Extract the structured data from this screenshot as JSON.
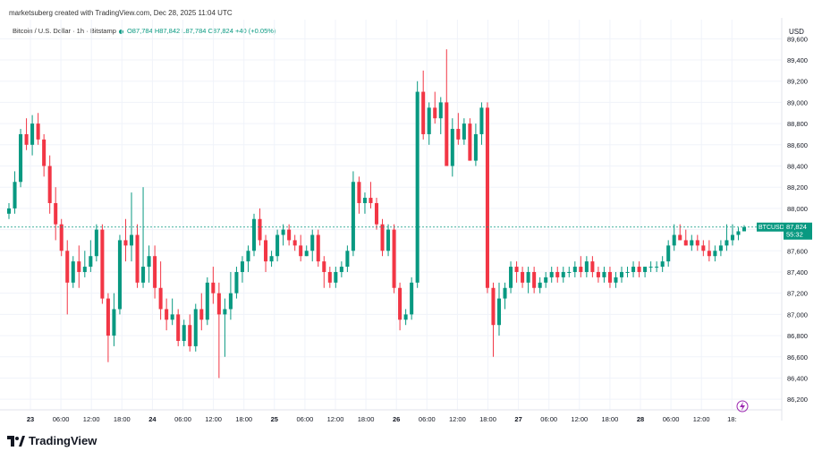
{
  "header": {
    "credit": "marketsuberg created with TradingView.com, Dec 28, 2025 11:04 UTC"
  },
  "legend": {
    "symbol": "Bitcoin / U.S. Dollar · 1h · Bitstamp",
    "o": "O87,784",
    "h": "H87,842",
    "l": "L87,784",
    "c": "C87,824",
    "chg": "+40 (+0.05%)"
  },
  "axis": {
    "currency": "USD",
    "ylim": [
      86100,
      89780
    ],
    "ticks": [
      "89,600",
      "89,400",
      "89,200",
      "89,000",
      "88,800",
      "88,600",
      "88,400",
      "88,200",
      "88,000",
      "87,800",
      "87,600",
      "87,400",
      "87,200",
      "87,000",
      "86,800",
      "86,600",
      "86,400",
      "86,200"
    ]
  },
  "xticks": [
    "23",
    "06:00",
    "12:00",
    "18:00",
    "24",
    "06:00",
    "12:00",
    "18:00",
    "25",
    "06:00",
    "12:00",
    "18:00",
    "26",
    "06:00",
    "12:00",
    "18:00",
    "27",
    "06:00",
    "12:00",
    "18:00",
    "28",
    "06:00",
    "12:00",
    "18:"
  ],
  "price_tag": {
    "symbol": "BTCUSD",
    "price": "87,824",
    "countdown": "55:32"
  },
  "footer": {
    "brand": "TradingView"
  },
  "colors": {
    "up": "#089981",
    "down": "#f23645",
    "grid": "#f0f3fa",
    "tag": "#089981"
  },
  "chart_data": {
    "type": "candlestick",
    "series_name": "BTCUSD 1h",
    "candles": [
      [
        87950,
        88050,
        87900,
        88000
      ],
      [
        88000,
        88350,
        87950,
        88250
      ],
      [
        88250,
        88750,
        88200,
        88700
      ],
      [
        88700,
        88850,
        88550,
        88600
      ],
      [
        88600,
        88880,
        88500,
        88800
      ],
      [
        88800,
        88900,
        88600,
        88650
      ],
      [
        88650,
        88700,
        88300,
        88400
      ],
      [
        88400,
        88500,
        87950,
        88050
      ],
      [
        88050,
        88200,
        87700,
        87850
      ],
      [
        87850,
        87900,
        87550,
        87600
      ],
      [
        87600,
        87700,
        87000,
        87300
      ],
      [
        87300,
        87550,
        87250,
        87500
      ],
      [
        87500,
        87650,
        87250,
        87400
      ],
      [
        87400,
        87600,
        87350,
        87450
      ],
      [
        87450,
        87700,
        87400,
        87550
      ],
      [
        87550,
        87850,
        87500,
        87800
      ],
      [
        87800,
        87850,
        87100,
        87150
      ],
      [
        87150,
        87200,
        86550,
        86800
      ],
      [
        86800,
        87200,
        86700,
        87050
      ],
      [
        87050,
        87750,
        87000,
        87700
      ],
      [
        87700,
        87900,
        87500,
        87650
      ],
      [
        87650,
        88150,
        87500,
        87750
      ],
      [
        87750,
        87850,
        87250,
        87300
      ],
      [
        87300,
        88200,
        87250,
        87450
      ],
      [
        87450,
        87650,
        87300,
        87550
      ],
      [
        87550,
        87650,
        87150,
        87250
      ],
      [
        87250,
        87500,
        86950,
        87050
      ],
      [
        87050,
        87150,
        86850,
        86950
      ],
      [
        86950,
        87150,
        86900,
        87000
      ],
      [
        87000,
        87050,
        86700,
        86750
      ],
      [
        86750,
        86950,
        86700,
        86900
      ],
      [
        86900,
        87000,
        86650,
        86700
      ],
      [
        86700,
        87100,
        86650,
        87050
      ],
      [
        87050,
        87200,
        86850,
        86950
      ],
      [
        86950,
        87350,
        86900,
        87300
      ],
      [
        87300,
        87450,
        87100,
        87200
      ],
      [
        87200,
        87300,
        86400,
        87000
      ],
      [
        87000,
        87150,
        86600,
        87050
      ],
      [
        87050,
        87400,
        86950,
        87200
      ],
      [
        87200,
        87450,
        87150,
        87400
      ],
      [
        87400,
        87550,
        87300,
        87500
      ],
      [
        87500,
        87650,
        87400,
        87600
      ],
      [
        87600,
        87950,
        87550,
        87900
      ],
      [
        87900,
        88000,
        87650,
        87700
      ],
      [
        87700,
        87750,
        87400,
        87500
      ],
      [
        87500,
        87600,
        87450,
        87550
      ],
      [
        87550,
        87800,
        87500,
        87750
      ],
      [
        87750,
        87850,
        87650,
        87800
      ],
      [
        87800,
        87850,
        87650,
        87700
      ],
      [
        87700,
        87750,
        87600,
        87650
      ],
      [
        87650,
        87750,
        87500,
        87550
      ],
      [
        87550,
        87650,
        87550,
        87600
      ],
      [
        87600,
        87800,
        87500,
        87750
      ],
      [
        87750,
        87800,
        87450,
        87500
      ],
      [
        87500,
        87550,
        87250,
        87400
      ],
      [
        87400,
        87450,
        87250,
        87300
      ],
      [
        87300,
        87450,
        87250,
        87400
      ],
      [
        87400,
        87500,
        87350,
        87450
      ],
      [
        87450,
        87650,
        87400,
        87600
      ],
      [
        87600,
        88350,
        87550,
        88250
      ],
      [
        88250,
        88300,
        87950,
        88050
      ],
      [
        88050,
        88150,
        87950,
        88100
      ],
      [
        88100,
        88250,
        88000,
        88050
      ],
      [
        88050,
        88100,
        87800,
        87850
      ],
      [
        87850,
        87900,
        87550,
        87600
      ],
      [
        87600,
        87850,
        87550,
        87800
      ],
      [
        87800,
        87850,
        87200,
        87250
      ],
      [
        87250,
        87300,
        86850,
        86950
      ],
      [
        86950,
        87050,
        86900,
        87000
      ],
      [
        87000,
        87350,
        86950,
        87300
      ],
      [
        87300,
        89200,
        87250,
        89100
      ],
      [
        89100,
        89300,
        88650,
        88700
      ],
      [
        88700,
        89000,
        88600,
        88950
      ],
      [
        88950,
        89100,
        88800,
        88850
      ],
      [
        88850,
        89050,
        88700,
        89000
      ],
      [
        89000,
        89500,
        88400,
        88400
      ],
      [
        88400,
        88850,
        88300,
        88750
      ],
      [
        88750,
        88900,
        88600,
        88650
      ],
      [
        88650,
        88850,
        88600,
        88800
      ],
      [
        88800,
        88850,
        88450,
        88450
      ],
      [
        88450,
        88800,
        88400,
        88700
      ],
      [
        88700,
        89000,
        88600,
        88950
      ],
      [
        88950,
        89000,
        87200,
        87250
      ],
      [
        87250,
        87300,
        86600,
        86900
      ],
      [
        86900,
        87300,
        86800,
        87150
      ],
      [
        87150,
        87300,
        87050,
        87250
      ],
      [
        87250,
        87500,
        87200,
        87450
      ],
      [
        87450,
        87500,
        87300,
        87400
      ],
      [
        87400,
        87450,
        87250,
        87300
      ],
      [
        87300,
        87450,
        87200,
        87400
      ],
      [
        87400,
        87450,
        87200,
        87250
      ],
      [
        87250,
        87350,
        87200,
        87300
      ],
      [
        87300,
        87400,
        87250,
        87350
      ],
      [
        87350,
        87450,
        87300,
        87400
      ],
      [
        87400,
        87450,
        87300,
        87350
      ],
      [
        87350,
        87450,
        87300,
        87400
      ],
      [
        87400,
        87450,
        87350,
        87400
      ],
      [
        87400,
        87500,
        87350,
        87450
      ],
      [
        87450,
        87550,
        87350,
        87400
      ],
      [
        87400,
        87550,
        87350,
        87500
      ],
      [
        87500,
        87550,
        87350,
        87400
      ],
      [
        87400,
        87450,
        87300,
        87350
      ],
      [
        87350,
        87450,
        87300,
        87400
      ],
      [
        87400,
        87450,
        87250,
        87300
      ],
      [
        87300,
        87400,
        87250,
        87350
      ],
      [
        87350,
        87450,
        87300,
        87400
      ],
      [
        87400,
        87450,
        87350,
        87400
      ],
      [
        87400,
        87500,
        87350,
        87450
      ],
      [
        87450,
        87500,
        87350,
        87400
      ],
      [
        87400,
        87450,
        87350,
        87450
      ],
      [
        87450,
        87500,
        87400,
        87450
      ],
      [
        87450,
        87500,
        87400,
        87450
      ],
      [
        87450,
        87550,
        87400,
        87500
      ],
      [
        87500,
        87700,
        87450,
        87650
      ],
      [
        87650,
        87850,
        87600,
        87750
      ],
      [
        87750,
        87850,
        87700,
        87700
      ],
      [
        87700,
        87800,
        87650,
        87650
      ],
      [
        87650,
        87750,
        87600,
        87700
      ],
      [
        87700,
        87750,
        87600,
        87650
      ],
      [
        87650,
        87700,
        87550,
        87600
      ],
      [
        87600,
        87700,
        87500,
        87550
      ],
      [
        87550,
        87650,
        87500,
        87600
      ],
      [
        87600,
        87700,
        87550,
        87650
      ],
      [
        87650,
        87850,
        87600,
        87700
      ],
      [
        87700,
        87850,
        87650,
        87750
      ],
      [
        87750,
        87820,
        87700,
        87784
      ],
      [
        87784,
        87842,
        87784,
        87824
      ]
    ]
  }
}
